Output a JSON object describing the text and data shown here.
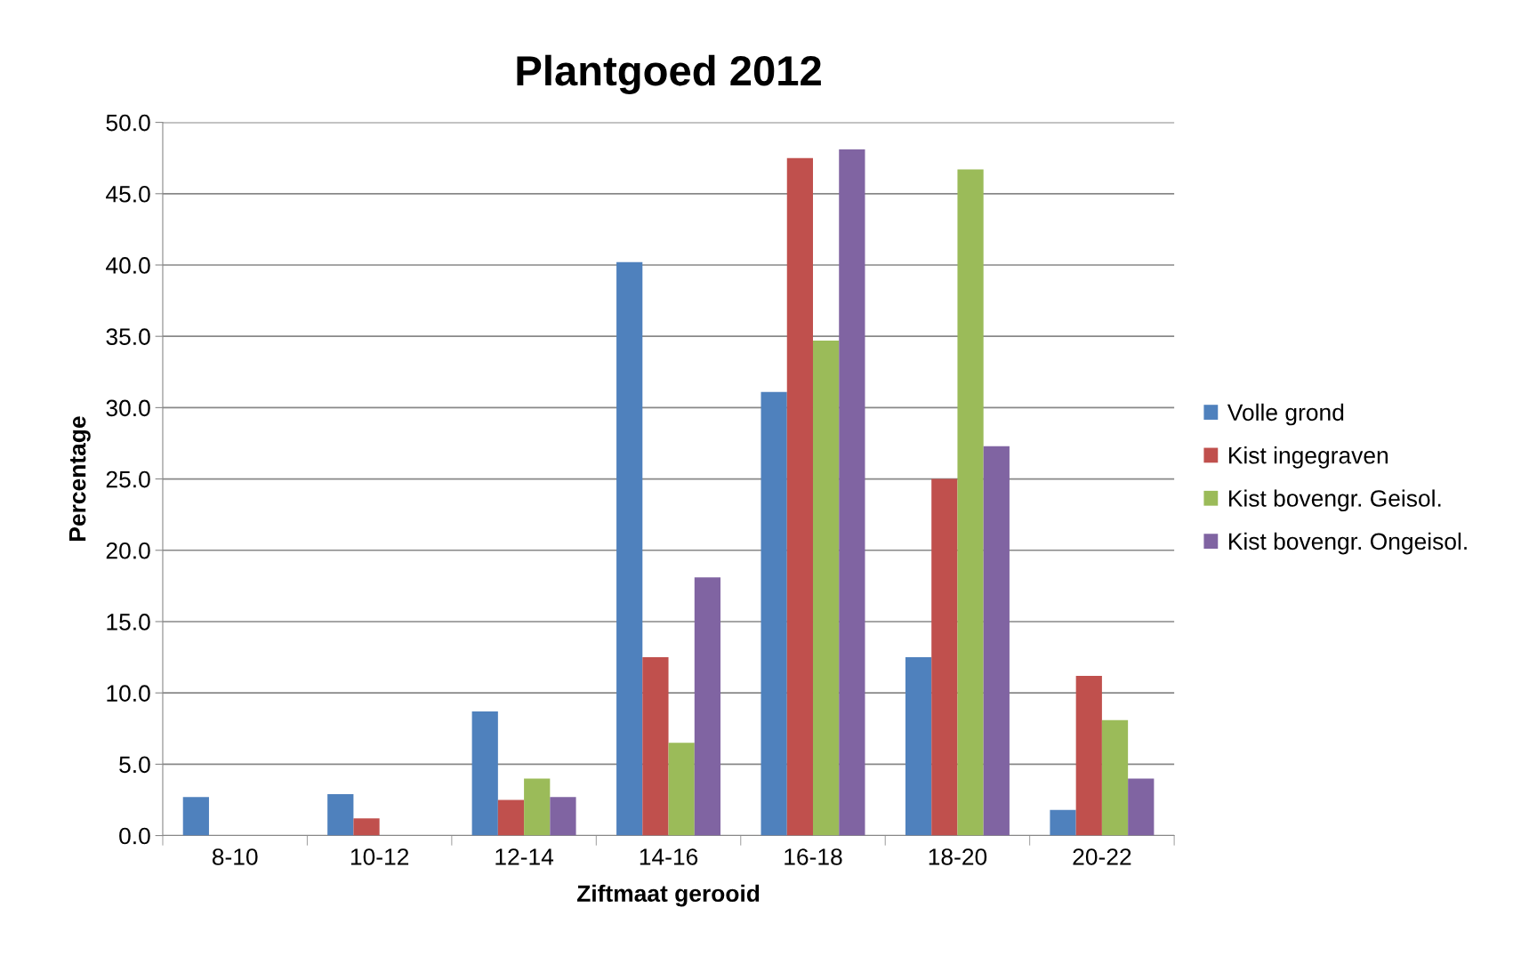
{
  "chart_data": {
    "type": "bar",
    "title": "Plantgoed 2012",
    "xlabel": "Ziftmaat gerooid",
    "ylabel": "Percentage",
    "categories": [
      "8-10",
      "10-12",
      "12-14",
      "14-16",
      "16-18",
      "18-20",
      "20-22"
    ],
    "series": [
      {
        "name": "Volle grond",
        "color": "#4f81bd",
        "values": [
          2.7,
          2.9,
          8.7,
          40.2,
          31.1,
          12.5,
          1.8
        ]
      },
      {
        "name": "Kist ingegraven",
        "color": "#c0504d",
        "values": [
          0,
          1.2,
          2.5,
          12.5,
          47.5,
          25.0,
          11.2
        ]
      },
      {
        "name": "Kist bovengr. Geisol.",
        "color": "#9bbb59",
        "values": [
          0,
          0,
          4.0,
          6.5,
          34.7,
          46.7,
          8.1
        ]
      },
      {
        "name": "Kist bovengr. Ongeisol.",
        "color": "#8064a2",
        "values": [
          0,
          0,
          2.7,
          18.1,
          48.1,
          27.3,
          4.0
        ]
      }
    ],
    "ylim": [
      0,
      50
    ],
    "yticks": [
      {
        "value": 0,
        "label": "0.0"
      },
      {
        "value": 5,
        "label": "5.0"
      },
      {
        "value": 10,
        "label": "10.0"
      },
      {
        "value": 15,
        "label": "15.0"
      },
      {
        "value": 20,
        "label": "20.0"
      },
      {
        "value": 25,
        "label": "25.0"
      },
      {
        "value": 30,
        "label": "30.0"
      },
      {
        "value": 35,
        "label": "35.0"
      },
      {
        "value": 40,
        "label": "40.0"
      },
      {
        "value": 45,
        "label": "45.0"
      },
      {
        "value": 50,
        "label": "50.0"
      }
    ],
    "grid": "y",
    "legend": "right"
  }
}
